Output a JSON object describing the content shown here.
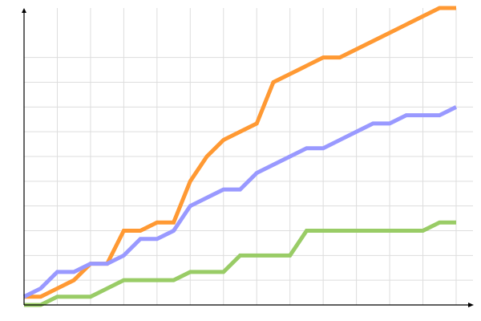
{
  "chart_data": {
    "type": "line",
    "title": "",
    "xlabel": "",
    "ylabel": "",
    "xlim": [
      0,
      26
    ],
    "ylim": [
      0,
      36
    ],
    "x_grid_step": 2,
    "y_grid_step": 3,
    "grid": true,
    "x": [
      0,
      1,
      2,
      3,
      4,
      5,
      6,
      7,
      8,
      9,
      10,
      11,
      12,
      13,
      14,
      15,
      16,
      17,
      18,
      19,
      20,
      21,
      22,
      23,
      24,
      25,
      26
    ],
    "series": [
      {
        "color": "#FF9933",
        "values": [
          1,
          1,
          2,
          3,
          5,
          5,
          9,
          9,
          10,
          10,
          15,
          18,
          20,
          21,
          22,
          27,
          28,
          29,
          30,
          30,
          31,
          32,
          33,
          34,
          35,
          36,
          36
        ]
      },
      {
        "color": "#9999FF",
        "values": [
          1,
          2,
          4,
          4,
          5,
          5,
          6,
          8,
          8,
          9,
          12,
          13,
          14,
          14,
          16,
          17,
          18,
          19,
          19,
          20,
          21,
          22,
          22,
          23,
          23,
          23,
          24
        ]
      },
      {
        "color": "#99CC66",
        "values": [
          0,
          0,
          1,
          1,
          1,
          2,
          3,
          3,
          3,
          3,
          4,
          4,
          4,
          6,
          6,
          6,
          6,
          9,
          9,
          9,
          9,
          9,
          9,
          9,
          9,
          10,
          10
        ]
      }
    ],
    "colors": {
      "grid": "#DDDDDD",
      "axis": "#000000"
    }
  }
}
